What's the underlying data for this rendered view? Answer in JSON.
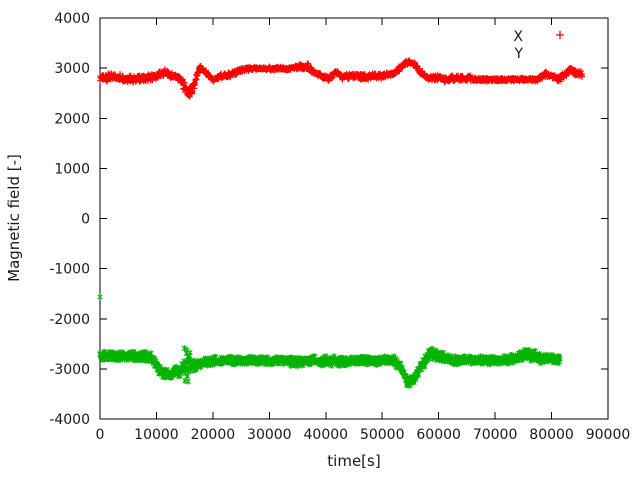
{
  "chart_data": {
    "type": "scatter",
    "title": "",
    "xlabel": "time[s]",
    "ylabel": "Magnetic field [-]",
    "xlim": [
      0,
      90000
    ],
    "ylim": [
      -4000,
      4000
    ],
    "x_ticks": [
      0,
      10000,
      20000,
      30000,
      40000,
      50000,
      60000,
      70000,
      80000,
      90000
    ],
    "y_ticks": [
      -4000,
      -3000,
      -2000,
      -1000,
      0,
      1000,
      2000,
      3000,
      4000
    ],
    "grid": false,
    "legend_position": "top-right",
    "background_color": "#ffffff",
    "axis_color": "#000000",
    "text_color": "#1a1a1a",
    "series": [
      {
        "name": "X",
        "color": "#ff0000",
        "marker": "plus",
        "legend_marker_visible": true,
        "sample_interval_s": 50,
        "t_end": 85400,
        "trend": [
          [
            0,
            2800,
            85
          ],
          [
            2000,
            2830,
            85
          ],
          [
            5000,
            2775,
            85
          ],
          [
            8000,
            2800,
            80
          ],
          [
            10500,
            2860,
            75
          ],
          [
            11500,
            2920,
            70
          ],
          [
            13000,
            2830,
            70
          ],
          [
            14200,
            2780,
            80
          ],
          [
            15000,
            2620,
            110
          ],
          [
            15800,
            2480,
            180
          ],
          [
            16500,
            2640,
            120
          ],
          [
            17000,
            2790,
            80
          ],
          [
            17700,
            3010,
            70
          ],
          [
            18600,
            2930,
            60
          ],
          [
            20000,
            2770,
            70
          ],
          [
            21500,
            2845,
            65
          ],
          [
            23000,
            2870,
            65
          ],
          [
            25000,
            2960,
            55
          ],
          [
            27000,
            2990,
            45
          ],
          [
            34000,
            2995,
            45
          ],
          [
            35500,
            3030,
            65
          ],
          [
            36800,
            3040,
            75
          ],
          [
            38000,
            2900,
            65
          ],
          [
            39500,
            2830,
            65
          ],
          [
            40500,
            2780,
            65
          ],
          [
            41800,
            2920,
            60
          ],
          [
            43000,
            2820,
            65
          ],
          [
            44500,
            2845,
            70
          ],
          [
            47000,
            2830,
            75
          ],
          [
            50000,
            2845,
            75
          ],
          [
            52000,
            2885,
            70
          ],
          [
            54000,
            3090,
            65
          ],
          [
            54800,
            3115,
            65
          ],
          [
            55800,
            3070,
            65
          ],
          [
            56800,
            2920,
            65
          ],
          [
            58000,
            2805,
            70
          ],
          [
            59500,
            2815,
            75
          ],
          [
            61000,
            2775,
            75
          ],
          [
            63000,
            2800,
            75
          ],
          [
            65500,
            2790,
            70
          ],
          [
            67000,
            2770,
            45
          ],
          [
            72000,
            2768,
            42
          ],
          [
            77500,
            2772,
            48
          ],
          [
            78800,
            2880,
            65
          ],
          [
            80200,
            2830,
            65
          ],
          [
            81300,
            2772,
            65
          ],
          [
            83200,
            2950,
            75
          ],
          [
            84300,
            2905,
            75
          ],
          [
            85400,
            2870,
            75
          ]
        ],
        "outliers": []
      },
      {
        "name": "Y",
        "color": "#00b400",
        "marker": "asterisk",
        "legend_marker_visible": false,
        "sample_interval_s": 50,
        "t_end": 81500,
        "trend": [
          [
            0,
            -2740,
            105
          ],
          [
            3000,
            -2748,
            105
          ],
          [
            6000,
            -2740,
            105
          ],
          [
            9000,
            -2765,
            105
          ],
          [
            10300,
            -2980,
            105
          ],
          [
            11300,
            -3095,
            115
          ],
          [
            12800,
            -3120,
            115
          ],
          [
            13400,
            -3030,
            110
          ],
          [
            14200,
            -3095,
            115
          ],
          [
            14800,
            -2900,
            360
          ],
          [
            15600,
            -2870,
            430
          ],
          [
            16200,
            -2950,
            250
          ],
          [
            16800,
            -2945,
            130
          ],
          [
            18000,
            -2870,
            100
          ],
          [
            20000,
            -2842,
            95
          ],
          [
            25000,
            -2830,
            90
          ],
          [
            30000,
            -2832,
            95
          ],
          [
            35000,
            -2862,
            105
          ],
          [
            38000,
            -2840,
            105
          ],
          [
            41000,
            -2852,
            115
          ],
          [
            44000,
            -2840,
            100
          ],
          [
            48000,
            -2832,
            95
          ],
          [
            52000,
            -2832,
            95
          ],
          [
            53400,
            -2990,
            105
          ],
          [
            54600,
            -3290,
            105
          ],
          [
            55700,
            -3185,
            105
          ],
          [
            56800,
            -2945,
            105
          ],
          [
            57800,
            -2820,
            125
          ],
          [
            58800,
            -2685,
            145
          ],
          [
            60000,
            -2740,
            145
          ],
          [
            61500,
            -2800,
            115
          ],
          [
            63000,
            -2832,
            100
          ],
          [
            67000,
            -2830,
            88
          ],
          [
            71000,
            -2830,
            88
          ],
          [
            73500,
            -2790,
            105
          ],
          [
            75500,
            -2685,
            135
          ],
          [
            76800,
            -2745,
            125
          ],
          [
            78500,
            -2790,
            105
          ],
          [
            80000,
            -2800,
            95
          ],
          [
            81500,
            -2812,
            95
          ]
        ],
        "outliers": [
          [
            0,
            -1565
          ]
        ]
      }
    ]
  }
}
